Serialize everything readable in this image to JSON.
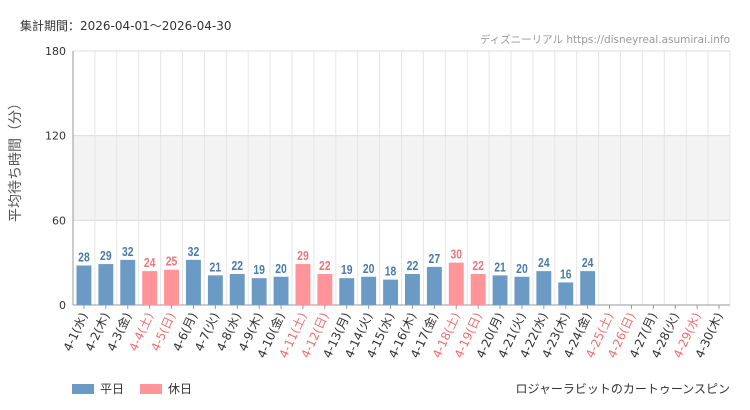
{
  "header": {
    "period_label": "集計期間：2026-04-01～2026-04-30",
    "source": "ディズニーリアル https://disneyreal.asumirai.info"
  },
  "footer": {
    "attraction": "ロジャーラビットのカートゥーンスピン"
  },
  "colors": {
    "weekday": "#6b9ac4",
    "holiday": "#ff9499",
    "weekday_label": "#4a7aa8",
    "holiday_label": "#e8787e",
    "band": "#f3f3f3",
    "grid": "#e6e6e6"
  },
  "chart_data": {
    "type": "bar",
    "ylabel": "平均待ち時間（分）",
    "ylim": [
      0,
      180
    ],
    "yticks": [
      0,
      60,
      120,
      180
    ],
    "grid": true,
    "legend": [
      {
        "name": "平日",
        "key": "weekday"
      },
      {
        "name": "休日",
        "key": "holiday"
      }
    ],
    "categories": [
      "4-1(水)",
      "4-2(木)",
      "4-3(金)",
      "4-4(土)",
      "4-5(日)",
      "4-6(月)",
      "4-7(火)",
      "4-8(水)",
      "4-9(木)",
      "4-10(金)",
      "4-11(土)",
      "4-12(日)",
      "4-13(月)",
      "4-14(火)",
      "4-15(水)",
      "4-16(木)",
      "4-17(金)",
      "4-18(土)",
      "4-19(日)",
      "4-20(月)",
      "4-21(火)",
      "4-22(水)",
      "4-23(木)",
      "4-24(金)",
      "4-25(土)",
      "4-26(日)",
      "4-27(月)",
      "4-28(火)",
      "4-29(水)",
      "4-30(木)"
    ],
    "values": [
      28,
      29,
      32,
      24,
      25,
      32,
      21,
      22,
      19,
      20,
      29,
      22,
      19,
      20,
      18,
      22,
      27,
      30,
      22,
      21,
      20,
      24,
      16,
      24,
      null,
      null,
      null,
      null,
      null,
      null
    ],
    "holiday": [
      false,
      false,
      false,
      true,
      true,
      false,
      false,
      false,
      false,
      false,
      true,
      true,
      false,
      false,
      false,
      false,
      false,
      true,
      true,
      false,
      false,
      false,
      false,
      false,
      true,
      true,
      false,
      false,
      true,
      false
    ]
  }
}
